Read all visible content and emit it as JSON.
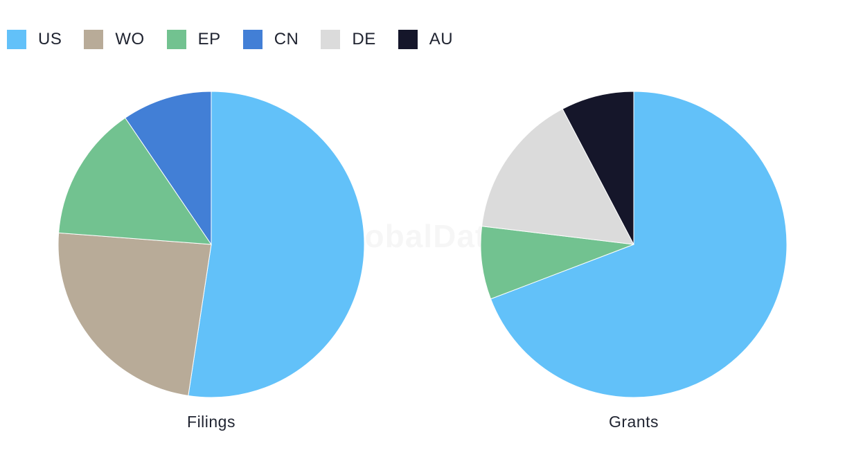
{
  "watermark": "GlobalData",
  "legend": [
    {
      "label": "US",
      "color": "#62C1F9"
    },
    {
      "label": "WO",
      "color": "#B8AB98"
    },
    {
      "label": "EP",
      "color": "#72C290"
    },
    {
      "label": "CN",
      "color": "#427FD6"
    },
    {
      "label": "DE",
      "color": "#DBDBDB"
    },
    {
      "label": "AU",
      "color": "#15162A"
    }
  ],
  "chart_data": [
    {
      "type": "pie",
      "title": "Filings",
      "series": [
        {
          "name": "US",
          "value": 52.4,
          "color": "#62C1F9"
        },
        {
          "name": "WO",
          "value": 23.8,
          "color": "#B8AB98"
        },
        {
          "name": "EP",
          "value": 14.3,
          "color": "#72C290"
        },
        {
          "name": "CN",
          "value": 9.5,
          "color": "#427FD6"
        }
      ]
    },
    {
      "type": "pie",
      "title": "Grants",
      "series": [
        {
          "name": "US",
          "value": 69.2,
          "color": "#62C1F9"
        },
        {
          "name": "EP",
          "value": 7.7,
          "color": "#72C290"
        },
        {
          "name": "DE",
          "value": 15.4,
          "color": "#DBDBDB"
        },
        {
          "name": "AU",
          "value": 7.7,
          "color": "#15162A"
        }
      ]
    }
  ]
}
